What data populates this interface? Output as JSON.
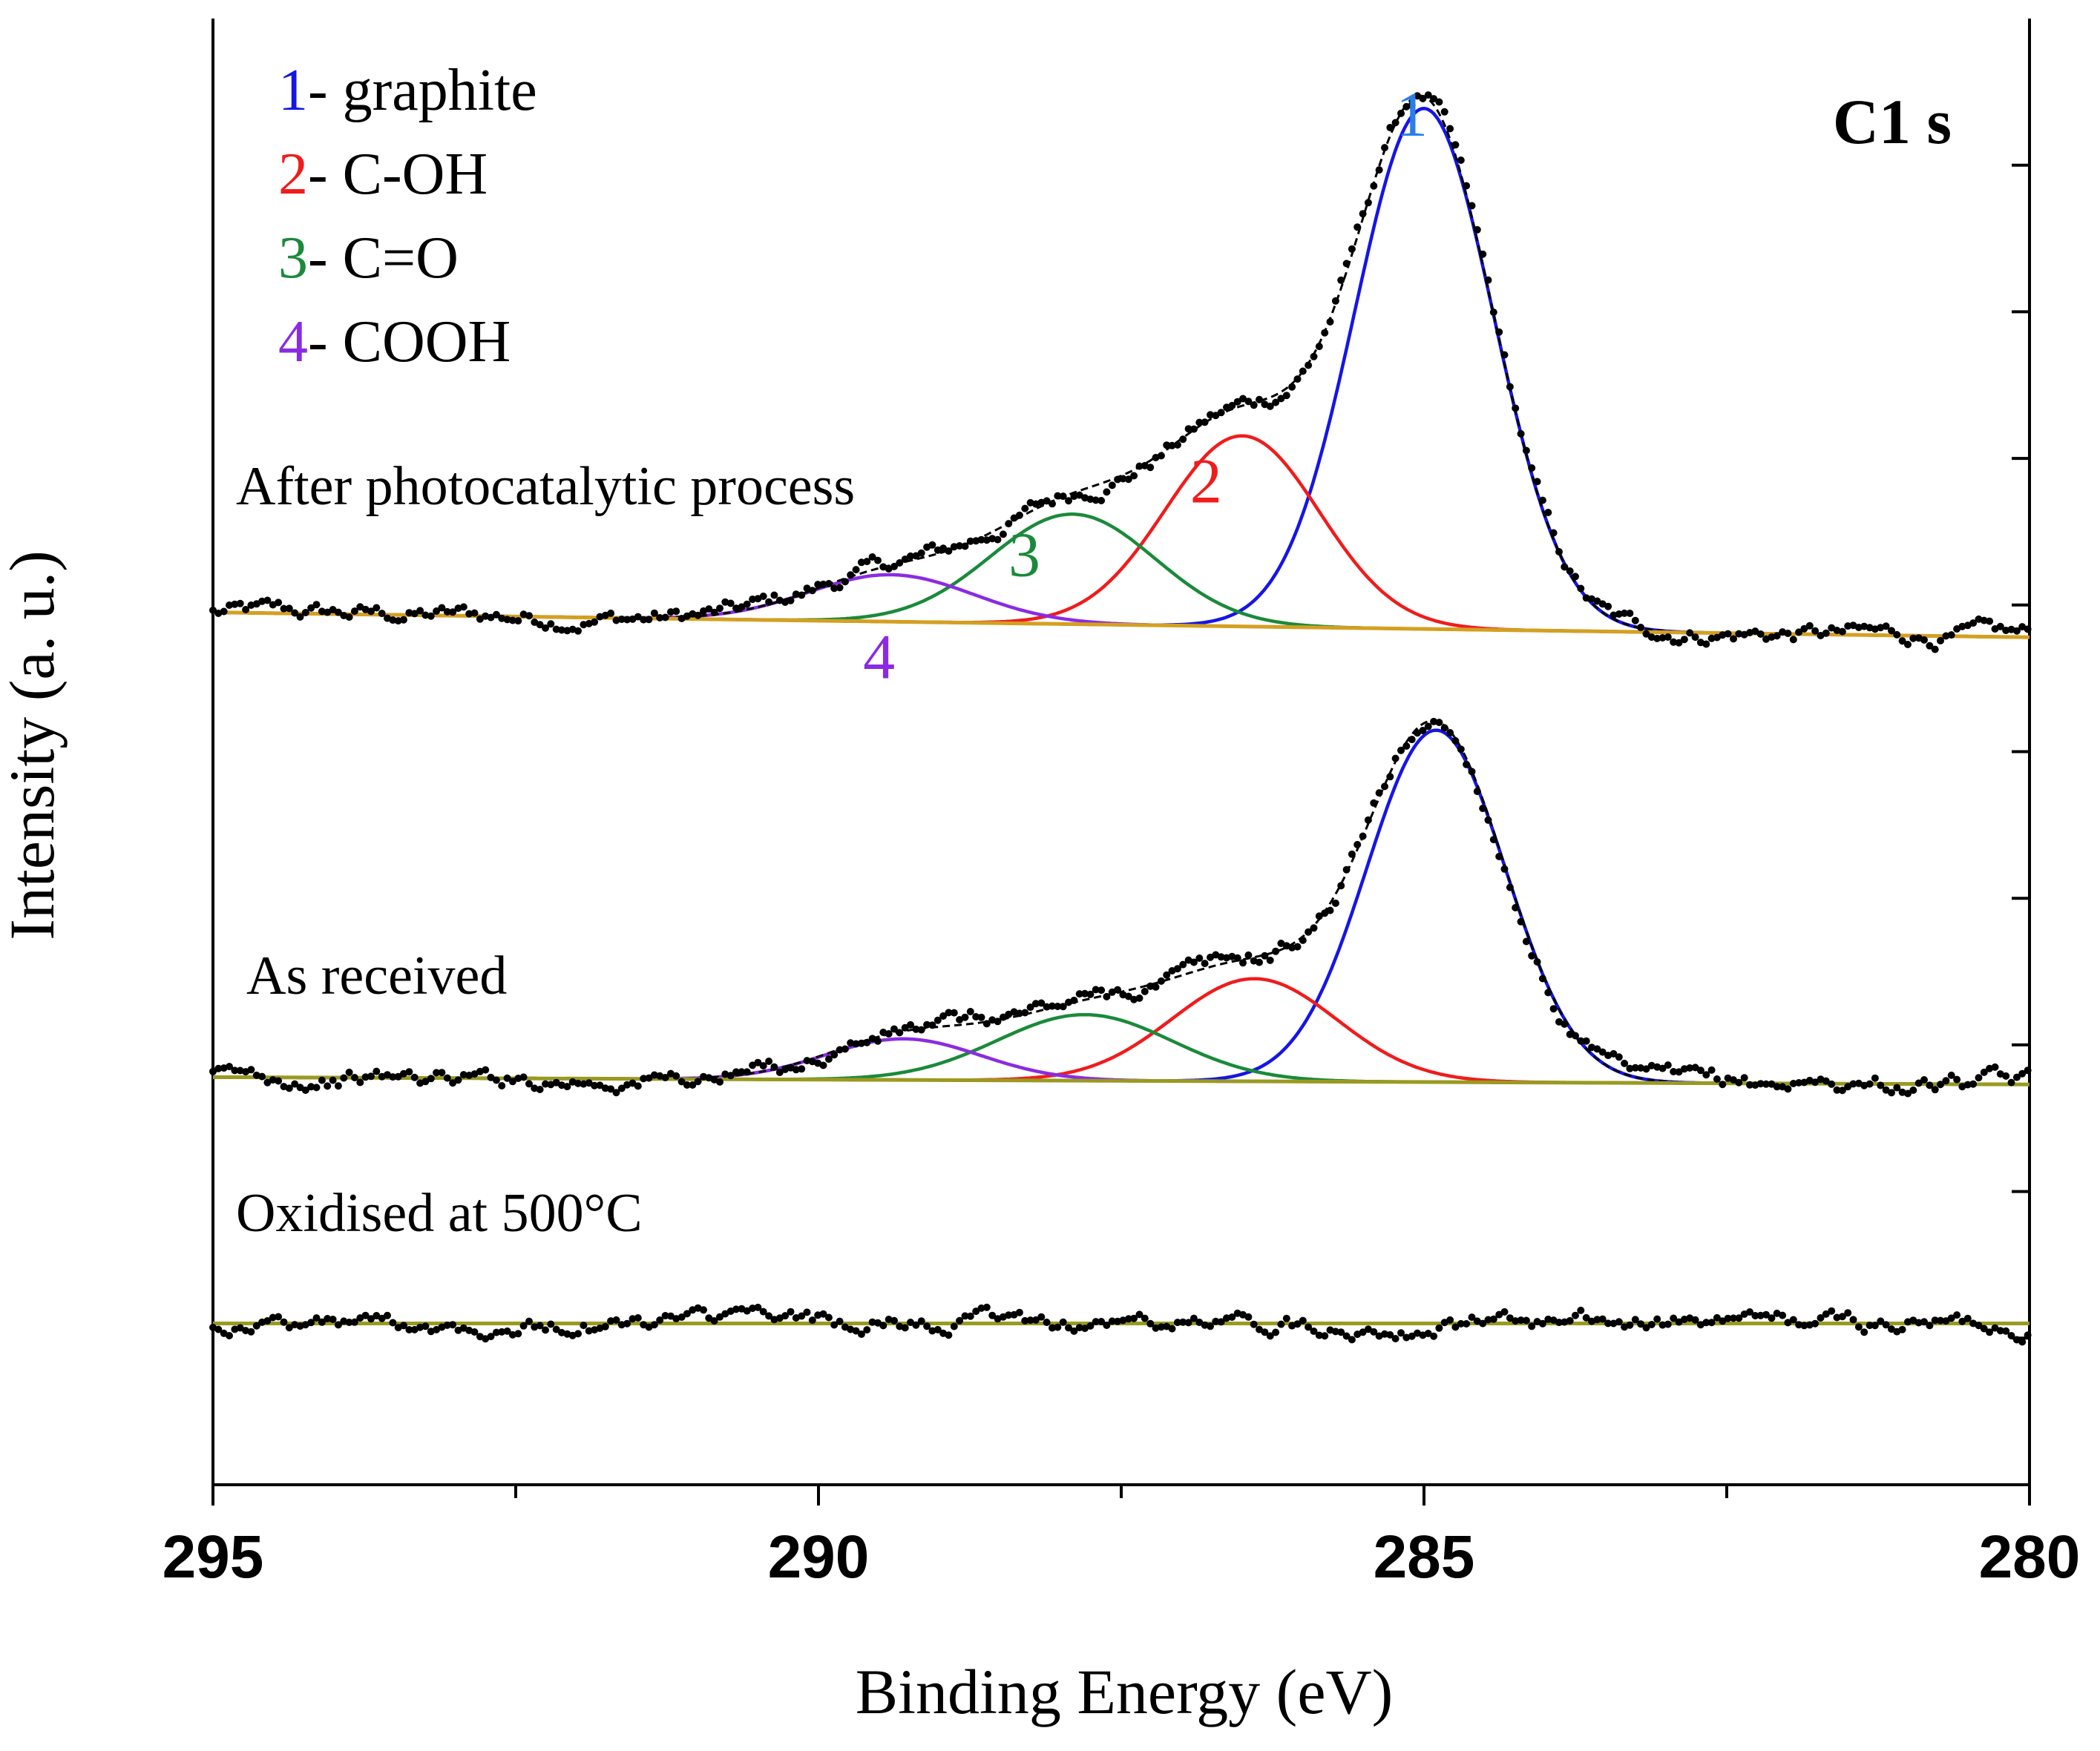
{
  "chart_data": {
    "type": "line",
    "title": "C1 s",
    "xlabel": "Binding Energy (eV)",
    "ylabel": "Intensity (a. u.)",
    "xlim": [
      295,
      280
    ],
    "x_ticks": [
      "295",
      "290",
      "285",
      "280"
    ],
    "x_tick_values": [
      295,
      290,
      285,
      280
    ],
    "x_minor_step": 2.5,
    "ylim": [
      0,
      10
    ],
    "y_ticks_right": [
      1,
      2,
      3,
      4,
      5,
      6,
      7,
      8,
      9
    ],
    "grid": false,
    "legend_position": "top-left",
    "legend": [
      {
        "number": "1",
        "label": "- graphite",
        "color": "#1515e6"
      },
      {
        "number": "2",
        "label": "- C-OH",
        "color": "#f01c1c"
      },
      {
        "number": "3",
        "label": "- C=O",
        "color": "#1a8a3a"
      },
      {
        "number": "4",
        "label": "- COOH",
        "color": "#8a2be2"
      }
    ],
    "colors": {
      "data_points": "#000000",
      "envelope": "#000000",
      "baseline_top": "#d4a020",
      "baseline_middle": "#9a9a20",
      "peak_number_1": "#2a7ee8"
    },
    "samples": [
      {
        "name": "After photocatalytic process",
        "baseline_start": 5.95,
        "baseline_end": 5.78,
        "peaks": [
          {
            "number": "1",
            "component": "graphite",
            "center": 285.0,
            "height": 3.55,
            "fwhm": 1.35
          },
          {
            "number": "2",
            "component": "C-OH",
            "center": 286.5,
            "height": 1.3,
            "fwhm": 1.5
          },
          {
            "number": "3",
            "component": "C=O",
            "center": 287.9,
            "height": 0.75,
            "fwhm": 1.6
          },
          {
            "number": "4",
            "component": "COOH",
            "center": 289.4,
            "height": 0.32,
            "fwhm": 1.6
          }
        ],
        "peak_label_positions": [
          {
            "number": "1",
            "x": 285.1,
            "y": 9.2
          },
          {
            "number": "2",
            "x": 286.8,
            "y": 6.7
          },
          {
            "number": "3",
            "x": 288.3,
            "y": 6.2
          },
          {
            "number": "4",
            "x": 289.5,
            "y": 5.5
          }
        ]
      },
      {
        "name": "As received",
        "baseline_start": 2.78,
        "baseline_end": 2.73,
        "peaks": [
          {
            "number": "1",
            "component": "graphite",
            "center": 284.9,
            "height": 2.4,
            "fwhm": 1.35
          },
          {
            "number": "2",
            "component": "C-OH",
            "center": 286.4,
            "height": 0.7,
            "fwhm": 1.6
          },
          {
            "number": "3",
            "component": "C=O",
            "center": 287.8,
            "height": 0.45,
            "fwhm": 1.7
          },
          {
            "number": "4",
            "component": "COOH",
            "center": 289.3,
            "height": 0.28,
            "fwhm": 1.5
          }
        ]
      },
      {
        "name": "Oxidised at 500°C",
        "baseline_start": 1.1,
        "baseline_end": 1.1,
        "peaks": []
      }
    ]
  }
}
